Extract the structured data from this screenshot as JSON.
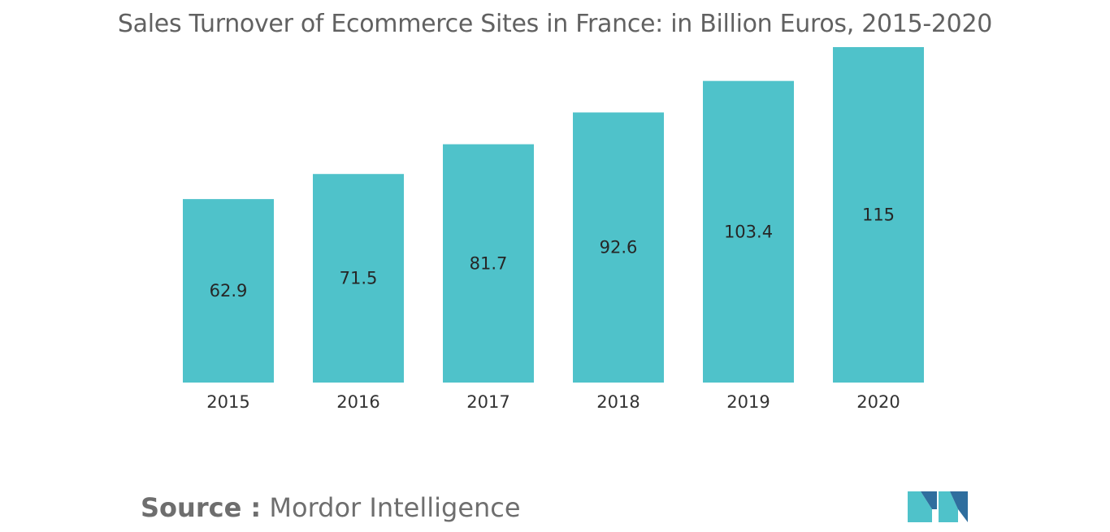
{
  "title": "Sales Turnover of Ecommerce Sites in France: in Billion Euros, 2015-2020",
  "source": {
    "prefix": "Source :",
    "name": "Mordor Intelligence"
  },
  "logo_name": "mordor-intelligence-logo",
  "colors": {
    "bar": "#4fc2ca",
    "logo_dark": "#2f6e9e",
    "logo_light": "#4fc2ca"
  },
  "chart_data": {
    "type": "bar",
    "title": "Sales Turnover of Ecommerce Sites in France: in Billion Euros, 2015-2020",
    "categories": [
      "2015",
      "2016",
      "2017",
      "2018",
      "2019",
      "2020"
    ],
    "values": [
      62.9,
      71.5,
      81.7,
      92.6,
      103.4,
      115
    ],
    "data_labels": [
      "62.9",
      "71.5",
      "81.7",
      "92.6",
      "103.4",
      "115"
    ],
    "xlabel": "",
    "ylabel": "",
    "ylim": [
      0,
      115
    ],
    "grid": false,
    "legend": "none"
  }
}
